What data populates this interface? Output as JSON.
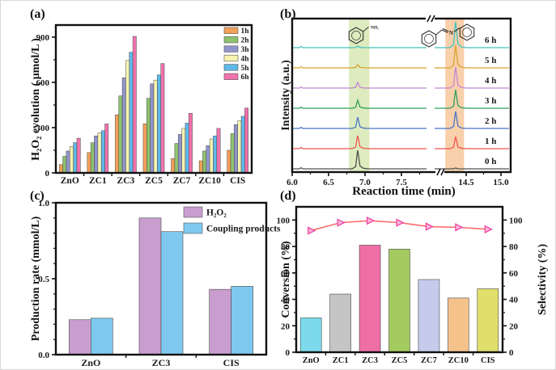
{
  "figure_name": "photocatalysis-four-panel-figure",
  "colors": {
    "axis": "#111111",
    "bar_edge": "#4a4a4a"
  },
  "chart_data": [
    {
      "id": "a",
      "type": "bar",
      "panel_label": "(a)",
      "ylabel": "H₂O₂ evolution ( μmol/L )",
      "ylim": [
        0,
        980
      ],
      "yticks": [
        0,
        300,
        600,
        900
      ],
      "grid": false,
      "legend_position": "top-right-inside",
      "categories": [
        "ZnO",
        "ZC1",
        "ZC3",
        "ZC5",
        "ZC7",
        "ZC10",
        "CIS"
      ],
      "series": [
        {
          "name": "1h",
          "color": "#F2A05A",
          "values": [
            55,
            135,
            385,
            325,
            95,
            80,
            150
          ]
        },
        {
          "name": "2h",
          "color": "#8FC26E",
          "values": [
            110,
            200,
            510,
            495,
            195,
            145,
            260
          ]
        },
        {
          "name": "3h",
          "color": "#9094CB",
          "values": [
            145,
            245,
            630,
            590,
            255,
            180,
            320
          ]
        },
        {
          "name": "4h",
          "color": "#F8F3B0",
          "values": [
            175,
            265,
            745,
            615,
            295,
            225,
            345
          ]
        },
        {
          "name": "5h",
          "color": "#5FB9E9",
          "values": [
            200,
            280,
            800,
            650,
            330,
            245,
            375
          ]
        },
        {
          "name": "6h",
          "color": "#F173AD",
          "values": [
            230,
            325,
            905,
            725,
            395,
            295,
            430
          ]
        }
      ]
    },
    {
      "id": "b",
      "type": "line",
      "panel_label": "(b)",
      "xlabel": "Reaction time (min)",
      "ylabel": "Intensity (a.u.)",
      "x_axis": {
        "left_ticks": [
          6.0,
          6.5,
          7.0,
          7.5
        ],
        "right_ticks": [
          14.5,
          15.0
        ],
        "axis_break": true
      },
      "highlight_bands": [
        {
          "name": "benzylamine-retention-band",
          "x_range": [
            6.78,
            7.06
          ],
          "color": "#DDEBBE"
        },
        {
          "name": "coupling-product-retention-band",
          "x_range": [
            14.2,
            14.47
          ],
          "color": "#F8D0AB"
        }
      ],
      "molecules": [
        {
          "name": "benzylamine",
          "label": "NH₂"
        },
        {
          "name": "N-benzylidenebenzylamine",
          "label": "N"
        }
      ],
      "traces": [
        {
          "name": "0 h",
          "color": "#4F4F4F",
          "peak_6_9": 23,
          "peak_14_35": 1
        },
        {
          "name": "1 h",
          "color": "#F1544F",
          "peak_6_9": 16,
          "peak_14_35": 15
        },
        {
          "name": "2 h",
          "color": "#4A74C6",
          "peak_6_9": 14,
          "peak_14_35": 21
        },
        {
          "name": "3 h",
          "color": "#2FA05C",
          "peak_6_9": 10,
          "peak_14_35": 23
        },
        {
          "name": "4 h",
          "color": "#C684D3",
          "peak_6_9": 7,
          "peak_14_35": 26
        },
        {
          "name": "5 h",
          "color": "#D8A32C",
          "peak_6_9": 4,
          "peak_14_35": 28
        },
        {
          "name": "6 h",
          "color": "#41C2BE",
          "peak_6_9": 2,
          "peak_14_35": 32
        }
      ]
    },
    {
      "id": "c",
      "type": "bar",
      "panel_label": "(c)",
      "ylabel": "Production rate (mmol/L)",
      "ylim": [
        0,
        1.0
      ],
      "yticks": [
        {
          "v": 0,
          "label": "0.0"
        },
        {
          "v": 0.5,
          "label": "0.5"
        },
        {
          "v": 1.0,
          "label": "1.0"
        }
      ],
      "minor_step": 0.1,
      "legend_position": "top-right-inside",
      "categories": [
        "ZnO",
        "ZC3",
        "CIS"
      ],
      "series": [
        {
          "name": "H₂O₂",
          "color": "#C99ECF",
          "values": [
            0.23,
            0.9,
            0.43
          ]
        },
        {
          "name": "Coupling products",
          "color": "#7FC9EE",
          "values": [
            0.24,
            0.81,
            0.45
          ]
        }
      ]
    },
    {
      "id": "d",
      "type": "bar+line",
      "panel_label": "(d)",
      "ylabel_left": "Conversion (%)",
      "ylabel_right": "Selectivity (%)",
      "ylim": [
        0,
        110
      ],
      "yticks": [
        0,
        20,
        40,
        60,
        80,
        100
      ],
      "minor_step": 10,
      "categories": [
        "ZnO",
        "ZC1",
        "ZC3",
        "ZC5",
        "ZC7",
        "ZC10",
        "CIS"
      ],
      "bars": {
        "name": "Conversion",
        "values": [
          26,
          44,
          81,
          78,
          55,
          41,
          48
        ],
        "colors": [
          "#7CDAEB",
          "#C5C5C5",
          "#EE6FA6",
          "#A3CB5F",
          "#C5CCEB",
          "#F5C28C",
          "#E1DF6C"
        ]
      },
      "line": {
        "name": "Selectivity",
        "color": "#FB6C6C",
        "marker": "right-triangle",
        "marker_stroke": "#EE3F9F",
        "marker_fill": "#FBB3D8",
        "values": [
          92,
          98,
          99.5,
          98,
          95,
          94.5,
          93
        ]
      }
    }
  ]
}
